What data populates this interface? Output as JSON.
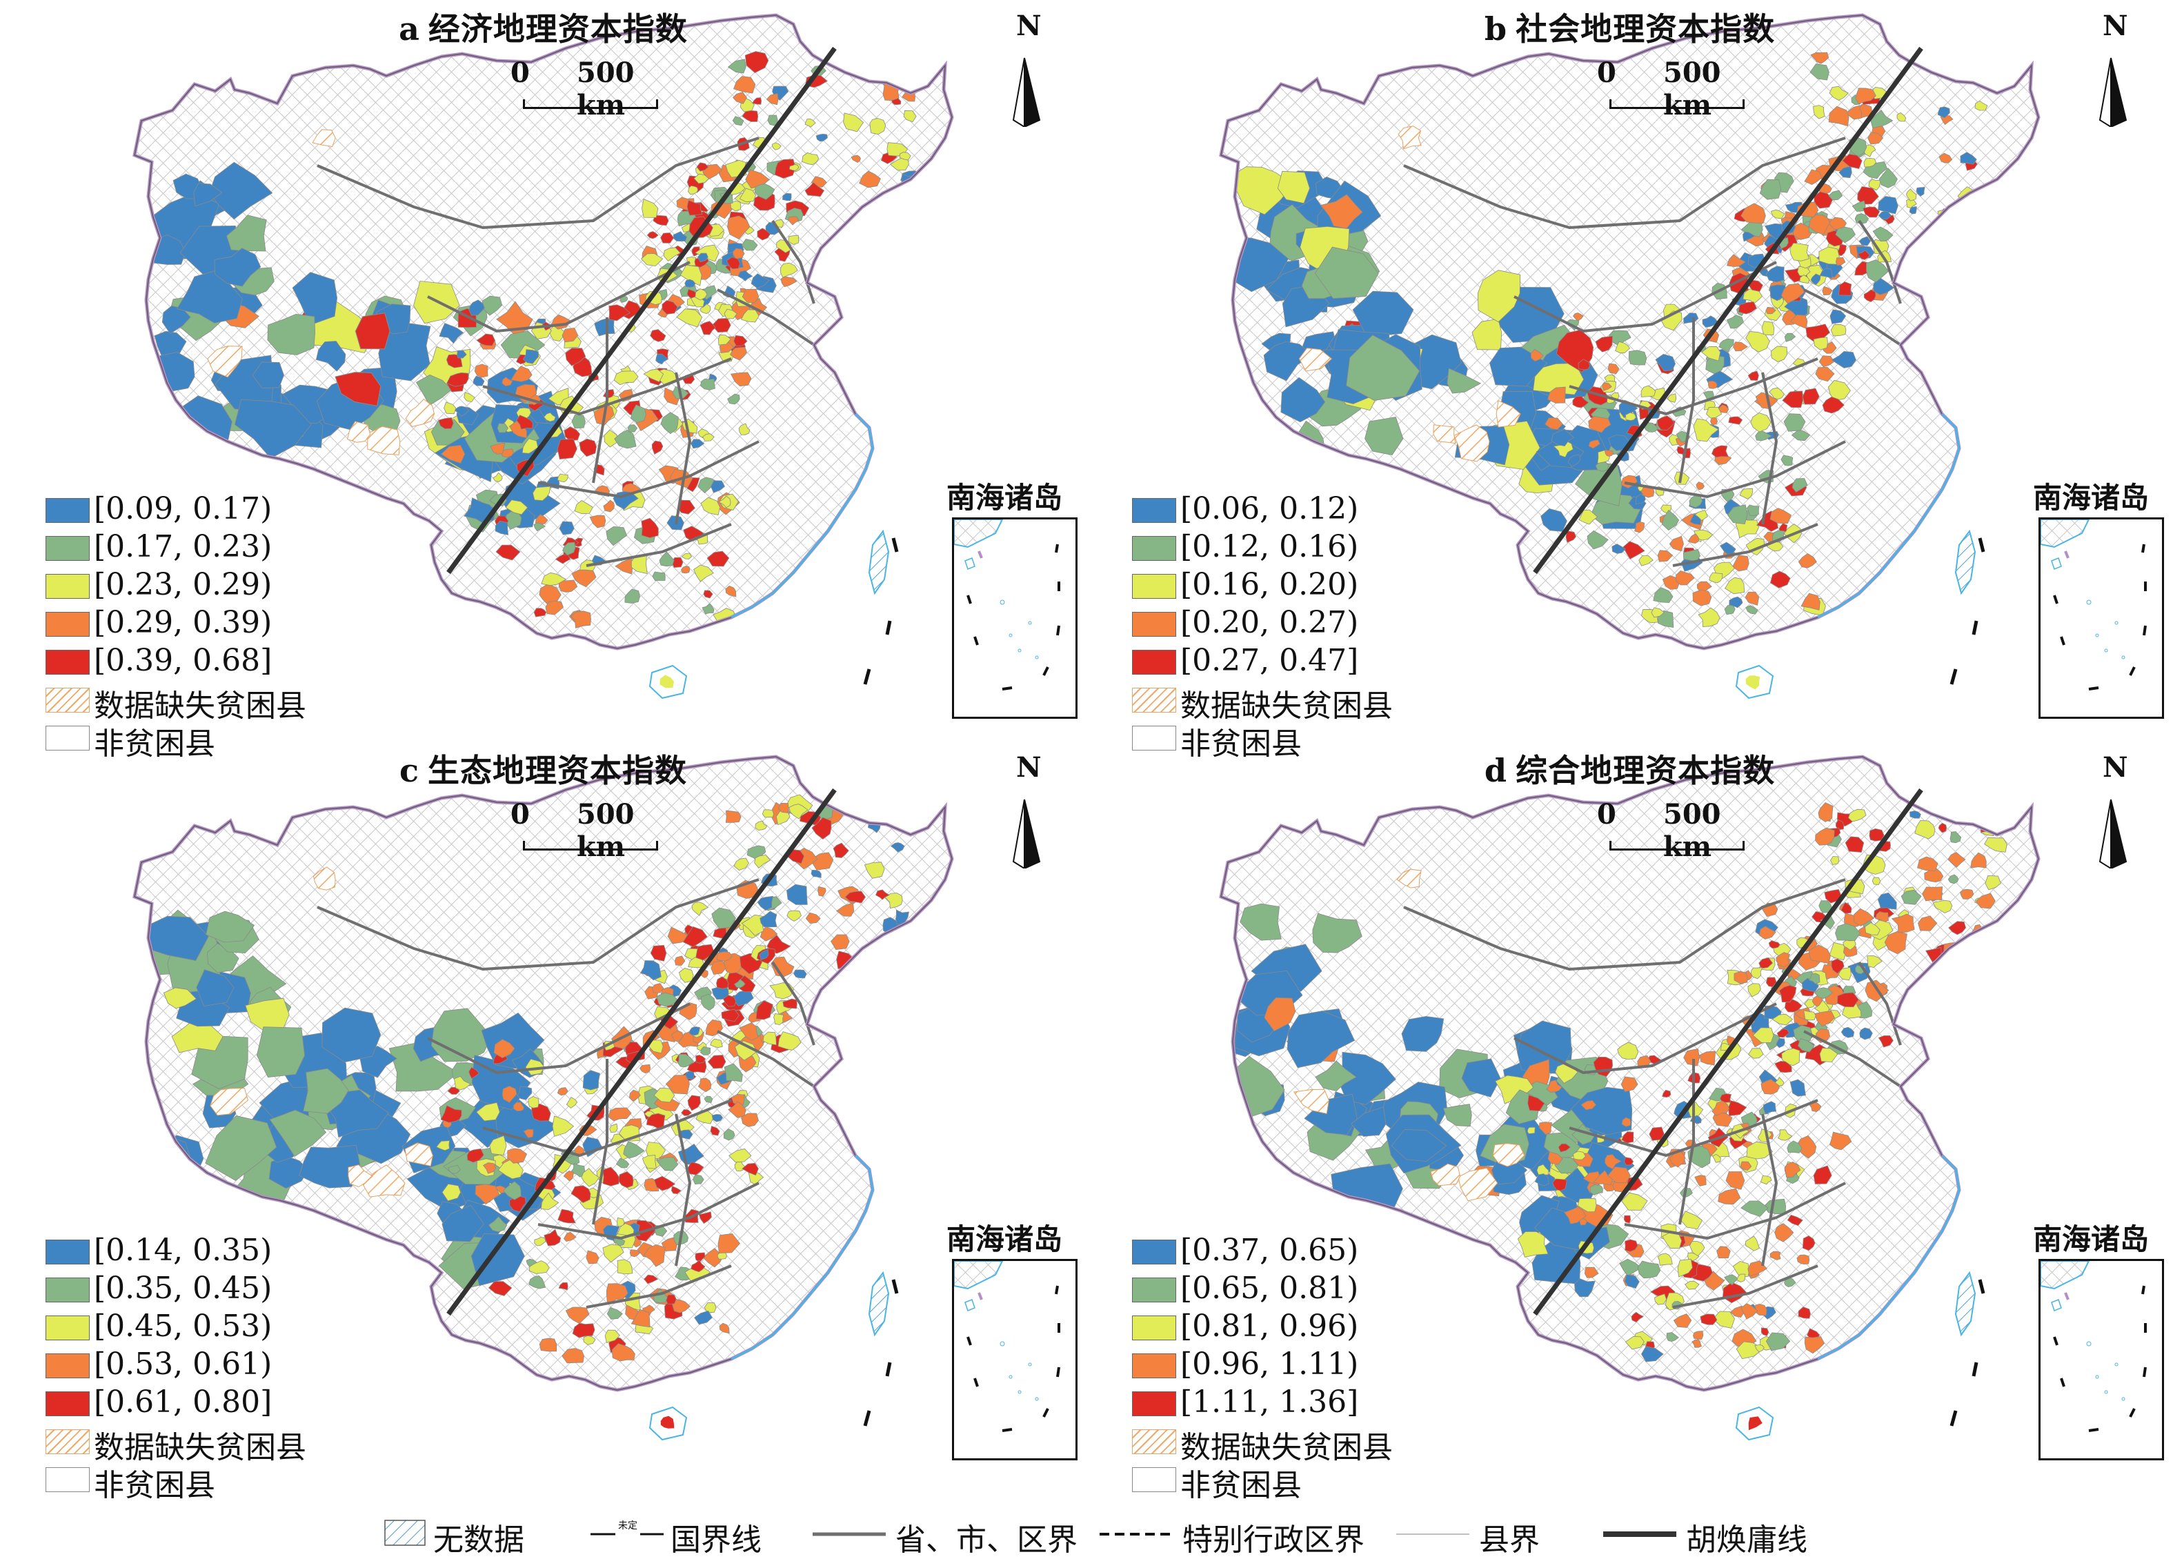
{
  "panels": [
    {
      "id": "a",
      "letter": "a",
      "title": "经济地理资本指数",
      "legend": [
        {
          "label": "[0.09, 0.17)",
          "color": "#3f85c3"
        },
        {
          "label": "[0.17, 0.23)",
          "color": "#86b586"
        },
        {
          "label": "[0.23, 0.29)",
          "color": "#e2ec56"
        },
        {
          "label": "[0.29, 0.39)",
          "color": "#f4823e"
        },
        {
          "label": "[0.39, 0.68]",
          "color": "#e02b25"
        }
      ]
    },
    {
      "id": "b",
      "letter": "b",
      "title": "社会地理资本指数",
      "legend": [
        {
          "label": "[0.06, 0.12)",
          "color": "#3f85c3"
        },
        {
          "label": "[0.12, 0.16)",
          "color": "#86b586"
        },
        {
          "label": "[0.16, 0.20)",
          "color": "#e2ec56"
        },
        {
          "label": "[0.20, 0.27)",
          "color": "#f4823e"
        },
        {
          "label": "[0.27, 0.47]",
          "color": "#e02b25"
        }
      ]
    },
    {
      "id": "c",
      "letter": "c",
      "title": "生态地理资本指数",
      "legend": [
        {
          "label": "[0.14, 0.35)",
          "color": "#3f85c3"
        },
        {
          "label": "[0.35, 0.45)",
          "color": "#86b586"
        },
        {
          "label": "[0.45, 0.53)",
          "color": "#e2ec56"
        },
        {
          "label": "[0.53, 0.61)",
          "color": "#f4823e"
        },
        {
          "label": "[0.61, 0.80]",
          "color": "#e02b25"
        }
      ]
    },
    {
      "id": "d",
      "letter": "d",
      "title": "综合地理资本指数",
      "legend": [
        {
          "label": "[0.37, 0.65)",
          "color": "#3f85c3"
        },
        {
          "label": "[0.65, 0.81)",
          "color": "#86b586"
        },
        {
          "label": "[0.81, 0.96)",
          "color": "#e2ec56"
        },
        {
          "label": "[0.96, 1.11)",
          "color": "#f4823e"
        },
        {
          "label": "[1.11, 1.36]",
          "color": "#e02b25"
        }
      ]
    }
  ],
  "common": {
    "missing_label": "数据缺失贫困县",
    "nonpoor_label": "非贫困县",
    "inset_title": "南海诸岛",
    "north_label": "N",
    "scale_zero": "0",
    "scale_distance": "500 km"
  },
  "bottom_legend": {
    "no_data": "无数据",
    "national_border": "国界线",
    "undetermined_mark": "未定",
    "province_border": "省、市、区界",
    "sar_border": "特别行政区界",
    "county_border": "县界",
    "hu_line": "胡焕庸线"
  },
  "colors": {
    "class1": "#3f85c3",
    "class2": "#86b586",
    "class3": "#e2ec56",
    "class4": "#f4823e",
    "class5": "#e02b25",
    "national_border": "#b48ec9",
    "province_border": "#6f6f6f",
    "coast": "#49b5e4",
    "missing_hatch": "#f0a866"
  }
}
